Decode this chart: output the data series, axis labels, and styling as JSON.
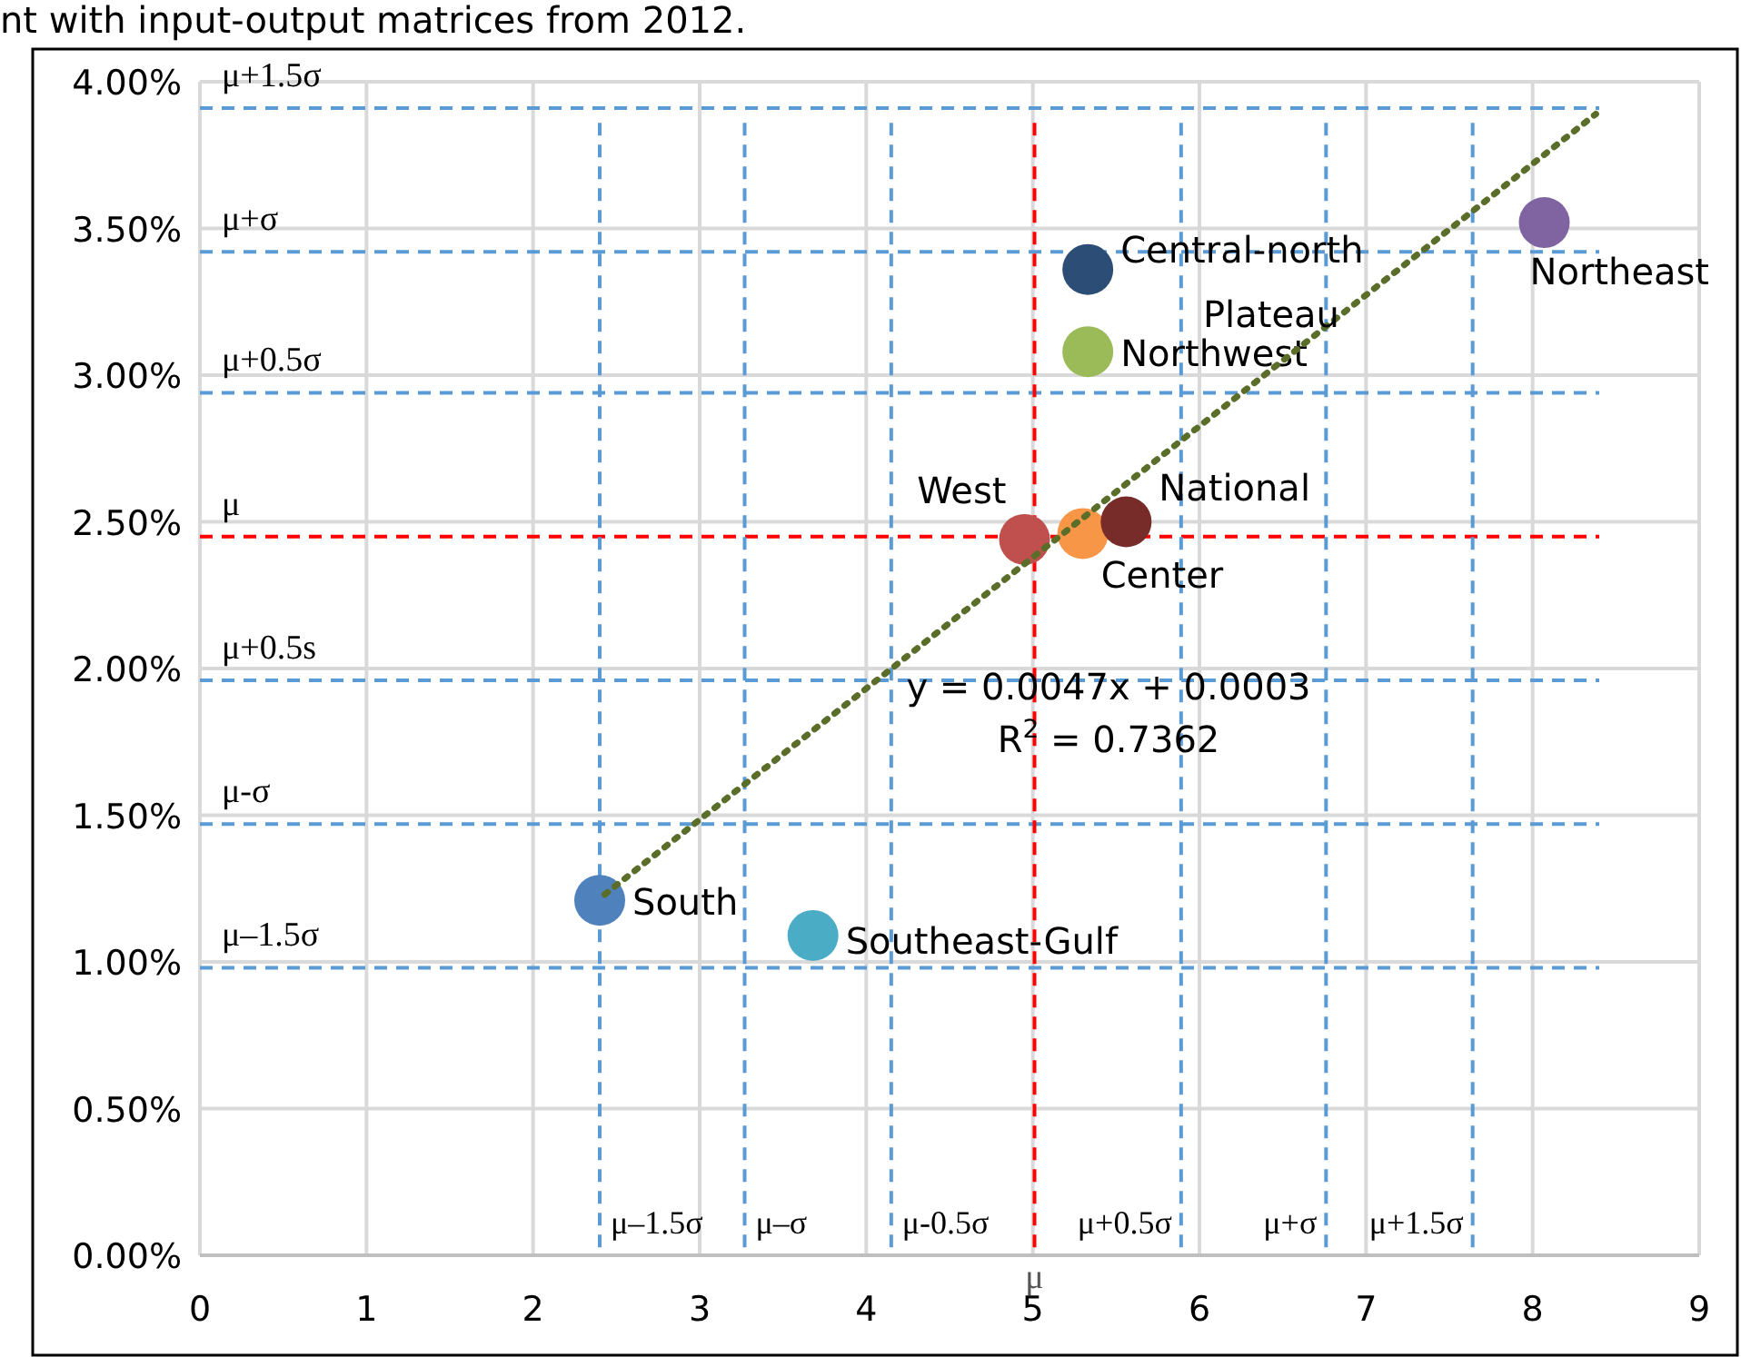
{
  "chart_data": {
    "type": "scatter",
    "title": "nt with input-output matrices from 2012.",
    "marker": "circle",
    "grid": true,
    "xlim": [
      0,
      9
    ],
    "xticks": [
      0,
      1,
      2,
      3,
      4,
      5,
      6,
      7,
      8,
      9
    ],
    "ylim": [
      0,
      0.04
    ],
    "yticks": [
      {
        "value": 0,
        "label": "0.00%"
      },
      {
        "value": 0.005,
        "label": "0.50%"
      },
      {
        "value": 0.01,
        "label": "1.00%"
      },
      {
        "value": 0.015,
        "label": "1.50%"
      },
      {
        "value": 0.02,
        "label": "2.00%"
      },
      {
        "value": 0.025,
        "label": "2.50%"
      },
      {
        "value": 0.03,
        "label": "3.00%"
      },
      {
        "value": 0.035,
        "label": "3.50%"
      },
      {
        "value": 0.04,
        "label": "4.00%"
      }
    ],
    "series": [
      {
        "name": "South",
        "color": "#4f81bd",
        "x": [
          2.4
        ],
        "values": [
          0.0121
        ]
      },
      {
        "name": "Southeast-Gulf",
        "color": "#4bacc6",
        "x": [
          3.68
        ],
        "values": [
          0.0109
        ]
      },
      {
        "name": "West",
        "color": "#c0504d",
        "x": [
          4.95
        ],
        "values": [
          0.0244
        ]
      },
      {
        "name": "Center",
        "color": "#f79646",
        "x": [
          5.3
        ],
        "values": [
          0.0246
        ]
      },
      {
        "name": "National",
        "color": "#772c2a",
        "x": [
          5.56
        ],
        "values": [
          0.025
        ]
      },
      {
        "name": "Central-north",
        "color": "#2c4d75",
        "x": [
          5.33
        ],
        "values": [
          0.0336
        ]
      },
      {
        "name": "Northwest",
        "color": "#9bbb59",
        "x": [
          5.33
        ],
        "values": [
          0.0308
        ]
      },
      {
        "name": "Northeast",
        "color": "#8064a2",
        "x": [
          8.07
        ],
        "values": [
          0.0352
        ]
      },
      {
        "type": "line",
        "color": "#5a6e2a",
        "line_style": "dotted",
        "marker": "none",
        "x": [
          2.43,
          8.38
        ],
        "values": [
          0.0123,
          0.0389
        ]
      }
    ],
    "ref_lines": [
      {
        "axis": "y",
        "value": 0.0391,
        "label": "μ+1.5σ",
        "color": "#5b9bd5",
        "line_style": "dashed"
      },
      {
        "axis": "y",
        "value": 0.0342,
        "label": "μ+σ",
        "color": "#5b9bd5",
        "line_style": "dashed"
      },
      {
        "axis": "y",
        "value": 0.0294,
        "label": "μ+0.5σ",
        "color": "#5b9bd5",
        "line_style": "dashed"
      },
      {
        "axis": "y",
        "value": 0.0245,
        "label": "μ",
        "color": "#ff0000",
        "line_style": "dashed"
      },
      {
        "axis": "y",
        "value": 0.0196,
        "label": "μ+0.5s",
        "color": "#5b9bd5",
        "line_style": "dashed"
      },
      {
        "axis": "y",
        "value": 0.0147,
        "label": "μ-σ",
        "color": "#5b9bd5",
        "line_style": "dashed"
      },
      {
        "axis": "y",
        "value": 0.0098,
        "label": "μ–1.5σ",
        "color": "#5b9bd5",
        "line_style": "dashed"
      },
      {
        "axis": "x",
        "value": 2.4,
        "label": "μ–1.5σ",
        "color": "#5b9bd5",
        "line_style": "dashed"
      },
      {
        "axis": "x",
        "value": 3.27,
        "label": "μ–σ",
        "color": "#5b9bd5",
        "line_style": "dashed"
      },
      {
        "axis": "x",
        "value": 4.15,
        "label": "μ-0.5σ",
        "color": "#5b9bd5",
        "line_style": "dashed"
      },
      {
        "axis": "x",
        "value": 5.01,
        "label": "μ",
        "color": "#ff0000",
        "line_style": "dashed"
      },
      {
        "axis": "x",
        "value": 5.89,
        "label": "μ+0.5σ",
        "color": "#5b9bd5",
        "line_style": "dashed"
      },
      {
        "axis": "x",
        "value": 6.76,
        "label": "μ+σ",
        "color": "#5b9bd5",
        "line_style": "dashed"
      },
      {
        "axis": "x",
        "value": 7.64,
        "label": "μ+1.5σ",
        "color": "#5b9bd5",
        "line_style": "dashed"
      }
    ],
    "annotations": [
      "Plateau",
      "y = 0.0047x + 0.0003",
      "R$^{2}$ = 0.7362"
    ]
  }
}
